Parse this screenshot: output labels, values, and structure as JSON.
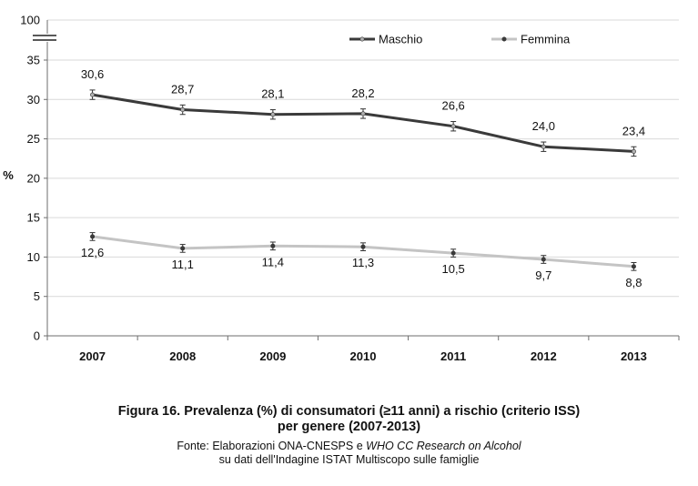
{
  "chart_data": {
    "type": "line",
    "title": "",
    "xlabel": "",
    "ylabel": "%",
    "categories": [
      "2007",
      "2008",
      "2009",
      "2010",
      "2011",
      "2012",
      "2013"
    ],
    "ylim": [
      0,
      35
    ],
    "y_ticks": [
      "0",
      "5",
      "10",
      "15",
      "20",
      "25",
      "30",
      "35"
    ],
    "y_break_top_label": "100",
    "grid": "horizontal",
    "legend_position": "top-right",
    "series": [
      {
        "name": "Maschio",
        "values": [
          30.6,
          28.7,
          28.1,
          28.2,
          26.6,
          24.0,
          23.4
        ],
        "labels": [
          "30,6",
          "28,7",
          "28,1",
          "28,2",
          "26,6",
          "24,0",
          "23,4"
        ],
        "color": "#3a3a3a",
        "marker_color": "#b0b0b0",
        "error_bar": 0.6,
        "label_position": "above"
      },
      {
        "name": "Femmina",
        "values": [
          12.6,
          11.1,
          11.4,
          11.3,
          10.5,
          9.7,
          8.8
        ],
        "labels": [
          "12,6",
          "11,1",
          "11,4",
          "11,3",
          "10,5",
          "9,7",
          "8,8"
        ],
        "color": "#c4c4c4",
        "marker_color": "#3a3a3a",
        "error_bar": 0.5,
        "label_position": "below"
      }
    ]
  },
  "caption": {
    "title_line1": "Figura 16. Prevalenza (%) di consumatori (≥11 anni) a rischio (criterio ISS)",
    "title_line2": "per genere (2007-2013)",
    "source_prefix": "Fonte: Elaborazioni ONA-CNESPS e ",
    "source_italic": "WHO CC Research on Alcohol",
    "source_line2": "su dati dell'Indagine ISTAT Multiscopo sulle famiglie"
  }
}
